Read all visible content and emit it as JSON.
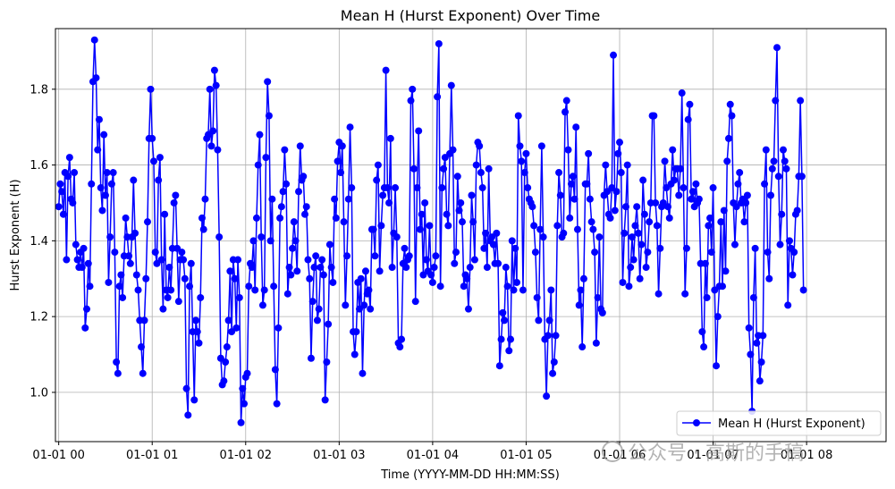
{
  "watermark": {
    "text": "公众号 · 高斯的手稿"
  },
  "chart_data": {
    "type": "line",
    "title": "Mean H (Hurst Exponent) Over Time",
    "xlabel": "Time (YYYY-MM-DD HH:MM:SS)",
    "ylabel": "Hurst Exponent (H)",
    "x_start": "2024-01-01 00:00:00",
    "x_step_minutes": 1,
    "xlim_hours": [
      -0.035,
      8.85
    ],
    "ylim": [
      0.87,
      1.96
    ],
    "x_ticks": [
      {
        "value": 0,
        "label": "01-01 00"
      },
      {
        "value": 1,
        "label": "01-01 01"
      },
      {
        "value": 2,
        "label": "01-01 02"
      },
      {
        "value": 3,
        "label": "01-01 03"
      },
      {
        "value": 4,
        "label": "01-01 04"
      },
      {
        "value": 5,
        "label": "01-01 05"
      },
      {
        "value": 6,
        "label": "01-01 06"
      },
      {
        "value": 7,
        "label": "01-01 07"
      },
      {
        "value": 8,
        "label": "01-01 08"
      }
    ],
    "y_ticks": [
      {
        "value": 1.0,
        "label": "1.0"
      },
      {
        "value": 1.2,
        "label": "1.2"
      },
      {
        "value": 1.4,
        "label": "1.4"
      },
      {
        "value": 1.6,
        "label": "1.6"
      },
      {
        "value": 1.8,
        "label": "1.8"
      }
    ],
    "grid": true,
    "legend_position": "bottom-right",
    "color": "#0000ff",
    "series": [
      {
        "name": "Mean H (Hurst Exponent)",
        "values": [
          1.49,
          1.55,
          1.53,
          1.47,
          1.58,
          1.35,
          1.57,
          1.62,
          1.51,
          1.5,
          1.58,
          1.39,
          1.35,
          1.33,
          1.37,
          1.33,
          1.38,
          1.17,
          1.22,
          1.34,
          1.28,
          1.55,
          1.82,
          1.93,
          1.83,
          1.64,
          1.72,
          1.54,
          1.48,
          1.68,
          1.52,
          1.58,
          1.29,
          1.41,
          1.55,
          1.58,
          1.37,
          1.08,
          1.05,
          1.28,
          1.31,
          1.25,
          1.36,
          1.46,
          1.41,
          1.36,
          1.34,
          1.41,
          1.56,
          1.42,
          1.31,
          1.27,
          1.19,
          1.12,
          1.05,
          1.19,
          1.3,
          1.45,
          1.67,
          1.8,
          1.67,
          1.61,
          1.37,
          1.34,
          1.56,
          1.62,
          1.35,
          1.22,
          1.47,
          1.27,
          1.25,
          1.33,
          1.27,
          1.38,
          1.5,
          1.52,
          1.38,
          1.24,
          1.35,
          1.37,
          1.35,
          1.3,
          1.01,
          0.94,
          1.28,
          1.34,
          1.16,
          0.98,
          1.19,
          1.16,
          1.13,
          1.25,
          1.46,
          1.43,
          1.51,
          1.67,
          1.68,
          1.8,
          1.65,
          1.69,
          1.85,
          1.81,
          1.64,
          1.41,
          1.09,
          1.02,
          1.03,
          1.08,
          1.12,
          1.19,
          1.32,
          1.16,
          1.35,
          1.3,
          1.17,
          1.35,
          1.25,
          0.92,
          1.01,
          0.97,
          1.04,
          1.05,
          1.28,
          1.34,
          1.33,
          1.4,
          1.27,
          1.46,
          1.6,
          1.68,
          1.41,
          1.23,
          1.27,
          1.62,
          1.82,
          1.73,
          1.4,
          1.51,
          1.28,
          1.06,
          0.97,
          1.17,
          1.46,
          1.49,
          1.53,
          1.64,
          1.55,
          1.26,
          1.33,
          1.31,
          1.38,
          1.45,
          1.4,
          1.32,
          1.53,
          1.65,
          1.56,
          1.57,
          1.47,
          1.49,
          1.35,
          1.3,
          1.09,
          1.24,
          1.33,
          1.36,
          1.19,
          1.22,
          1.33,
          1.35,
          1.31,
          0.98,
          1.08,
          1.18,
          1.39,
          1.33,
          1.29,
          1.51,
          1.46,
          1.61,
          1.66,
          1.58,
          1.65,
          1.45,
          1.23,
          1.36,
          1.51,
          1.7,
          1.54,
          1.16,
          1.1,
          1.16,
          1.29,
          1.22,
          1.3,
          1.05,
          1.23,
          1.32,
          1.26,
          1.27,
          1.22,
          1.43,
          1.43,
          1.36,
          1.56,
          1.6,
          1.32,
          1.44,
          1.52,
          1.54,
          1.85,
          1.54,
          1.5,
          1.67,
          1.33,
          1.42,
          1.54,
          1.41,
          1.13,
          1.12,
          1.14,
          1.34,
          1.38,
          1.33,
          1.35,
          1.36,
          1.77,
          1.8,
          1.59,
          1.24,
          1.54,
          1.69,
          1.43,
          1.47,
          1.31,
          1.5,
          1.35,
          1.32,
          1.44,
          1.31,
          1.29,
          1.33,
          1.36,
          1.78,
          1.92,
          1.28,
          1.54,
          1.59,
          1.62,
          1.47,
          1.44,
          1.63,
          1.81,
          1.64,
          1.34,
          1.37,
          1.57,
          1.48,
          1.5,
          1.45,
          1.28,
          1.31,
          1.3,
          1.22,
          1.33,
          1.52,
          1.45,
          1.35,
          1.6,
          1.66,
          1.65,
          1.58,
          1.54,
          1.38,
          1.42,
          1.33,
          1.59,
          1.4,
          1.41,
          1.39,
          1.34,
          1.42,
          1.34,
          1.07,
          1.14,
          1.21,
          1.19,
          1.33,
          1.28,
          1.11,
          1.14,
          1.4,
          1.27,
          1.38,
          1.29,
          1.73,
          1.65,
          1.61,
          1.27,
          1.58,
          1.63,
          1.54,
          1.51,
          1.5,
          1.49,
          1.44,
          1.37,
          1.25,
          1.19,
          1.43,
          1.65,
          1.41,
          1.14,
          0.99,
          1.15,
          1.19,
          1.27,
          1.05,
          1.08,
          1.15,
          1.44,
          1.58,
          1.52,
          1.41,
          1.42,
          1.74,
          1.77,
          1.64,
          1.46,
          1.55,
          1.57,
          1.51,
          1.7,
          1.43,
          1.23,
          1.27,
          1.12,
          1.3,
          1.55,
          1.55,
          1.63,
          1.51,
          1.45,
          1.43,
          1.37,
          1.13,
          1.25,
          1.41,
          1.22,
          1.21,
          1.52,
          1.6,
          1.53,
          1.47,
          1.46,
          1.54,
          1.89,
          1.48,
          1.53,
          1.63,
          1.66,
          1.58,
          1.29,
          1.42,
          1.49,
          1.6,
          1.28,
          1.33,
          1.41,
          1.35,
          1.44,
          1.49,
          1.42,
          1.3,
          1.39,
          1.56,
          1.47,
          1.33,
          1.37,
          1.45,
          1.5,
          1.73,
          1.73,
          1.5,
          1.44,
          1.26,
          1.38,
          1.49,
          1.5,
          1.61,
          1.54,
          1.49,
          1.46,
          1.55,
          1.64,
          1.56,
          1.59,
          1.59,
          1.52,
          1.59,
          1.79,
          1.54,
          1.26,
          1.38,
          1.72,
          1.76,
          1.51,
          1.53,
          1.49,
          1.55,
          1.5,
          1.51,
          1.34,
          1.16,
          1.12,
          1.34,
          1.25,
          1.44,
          1.46,
          1.37,
          1.54,
          1.27,
          1.07,
          1.2,
          1.28,
          1.45,
          1.28,
          1.48,
          1.32,
          1.61,
          1.67,
          1.76,
          1.73,
          1.5,
          1.39,
          1.49,
          1.55,
          1.58,
          1.5,
          1.51,
          1.45,
          1.5,
          1.52,
          1.17,
          1.1,
          0.95,
          1.25,
          1.38,
          1.13,
          1.15,
          1.03,
          1.08,
          1.15,
          1.55,
          1.64,
          1.37,
          1.3,
          1.52,
          1.59,
          1.61,
          1.77,
          1.91,
          1.57,
          1.39,
          1.47,
          1.64,
          1.61,
          1.59,
          1.23,
          1.4,
          1.38,
          1.31,
          1.37,
          1.47,
          1.48,
          1.57,
          1.77,
          1.57,
          1.27
        ]
      }
    ]
  }
}
